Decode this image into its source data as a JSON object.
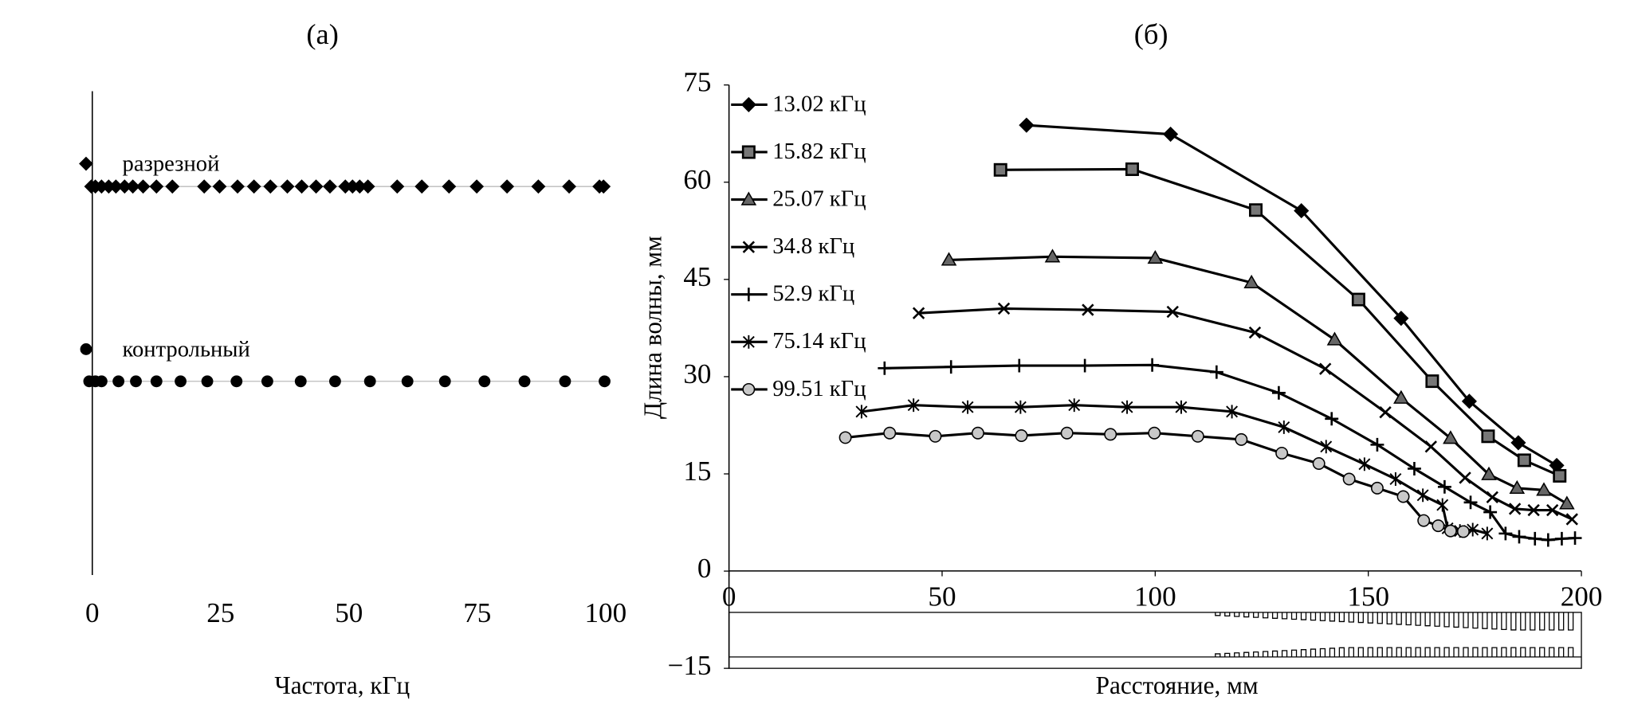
{
  "chart_data": [
    {
      "type": "scatter",
      "title": "(а)",
      "xlabel": "Частота, кГц",
      "xlim": [
        0,
        100
      ],
      "xticks": [
        0,
        25,
        50,
        75,
        100
      ],
      "series": [
        {
          "name": "разрезной",
          "marker": "diamond",
          "color": "#000000",
          "x": [
            -0.2,
            0.6,
            1.8,
            3.2,
            4.6,
            6.3,
            7.9,
            9.9,
            12.5,
            15.6,
            21.8,
            24.8,
            28.3,
            31.5,
            34.7,
            38.0,
            40.8,
            43.6,
            46.3,
            49.3,
            50.7,
            52.1,
            53.7,
            59.4,
            64.2,
            69.5,
            74.9,
            80.8,
            86.9,
            92.9,
            98.8,
            99.6
          ]
        },
        {
          "name": "контрольный",
          "marker": "circle",
          "color": "#000000",
          "x": [
            -0.6,
            0.6,
            1.8,
            5.1,
            8.5,
            12.5,
            17.2,
            22.4,
            28.1,
            34.1,
            40.6,
            47.3,
            54.1,
            61.4,
            68.7,
            76.4,
            84.2,
            92.1,
            99.8
          ]
        }
      ]
    },
    {
      "type": "line",
      "title": "(б)",
      "xlabel": "Расстояние, мм",
      "ylabel": "Длина волны, мм",
      "xlim": [
        0,
        200
      ],
      "xticks": [
        0,
        50,
        100,
        150,
        200
      ],
      "ylim": [
        -15,
        75
      ],
      "yticks": [
        {
          "value": -15,
          "label": "−15"
        },
        0,
        15,
        30,
        45,
        60,
        75
      ],
      "legend": "upper left",
      "series": [
        {
          "name": "13.02 кГц",
          "color": "#000000",
          "marker": "diamond",
          "marker_fill": "#000000",
          "x": [
            69.8,
            103.6,
            134.3,
            157.7,
            173.7,
            185.2,
            194.2
          ],
          "values": [
            68.8,
            67.4,
            55.6,
            39.0,
            26.2,
            19.8,
            16.3
          ]
        },
        {
          "name": "15.82 кГц",
          "color": "#000000",
          "marker": "square",
          "marker_fill": "#777777",
          "x": [
            63.7,
            94.6,
            123.6,
            147.7,
            165.0,
            178.1,
            186.6,
            194.9
          ],
          "values": [
            61.9,
            62.0,
            55.7,
            41.9,
            29.3,
            20.8,
            17.1,
            14.7
          ]
        },
        {
          "name": "25.07 кГц",
          "color": "#000000",
          "marker": "triangle",
          "marker_fill": "#666666",
          "x": [
            51.6,
            75.9,
            100.0,
            122.6,
            142.1,
            157.7,
            169.3,
            178.3,
            184.9,
            191.2,
            196.6
          ],
          "values": [
            48.0,
            48.5,
            48.3,
            44.5,
            35.7,
            26.7,
            20.5,
            14.9,
            12.8,
            12.5,
            10.4
          ]
        },
        {
          "name": "34.8 кГц",
          "color": "#000000",
          "marker": "x",
          "marker_fill": "#000000",
          "x": [
            44.5,
            64.5,
            84.2,
            104.1,
            123.4,
            139.9,
            154.0,
            164.7,
            172.7,
            179.1,
            184.4,
            188.8,
            193.2,
            197.8
          ],
          "values": [
            39.8,
            40.5,
            40.3,
            40.0,
            36.8,
            31.2,
            24.5,
            19.2,
            14.4,
            11.4,
            9.6,
            9.4,
            9.4,
            8.0
          ]
        },
        {
          "name": "52.9 кГц",
          "color": "#000000",
          "marker": "plus",
          "marker_fill": "#000000",
          "x": [
            36.5,
            52.1,
            68.1,
            83.5,
            99.3,
            114.4,
            129.0,
            141.4,
            152.1,
            160.8,
            167.9,
            174.0,
            178.6,
            182.2,
            185.4,
            189.1,
            192.2,
            195.4,
            198.5
          ],
          "values": [
            31.3,
            31.5,
            31.7,
            31.7,
            31.8,
            30.7,
            27.5,
            23.5,
            19.5,
            15.8,
            13.0,
            10.6,
            9.1,
            5.8,
            5.3,
            5.0,
            4.8,
            5.0,
            5.1
          ]
        },
        {
          "name": "75.14 кГц",
          "color": "#000000",
          "marker": "star",
          "marker_fill": "#000000",
          "x": [
            31.1,
            43.3,
            56.0,
            68.4,
            81.0,
            93.4,
            106.1,
            118.0,
            130.2,
            140.1,
            149.1,
            156.4,
            162.8,
            167.4,
            168.6,
            171.5,
            174.5,
            177.9
          ],
          "values": [
            24.6,
            25.6,
            25.3,
            25.3,
            25.6,
            25.3,
            25.3,
            24.6,
            22.2,
            19.2,
            16.5,
            14.2,
            11.7,
            10.2,
            6.6,
            6.2,
            6.4,
            5.8
          ]
        },
        {
          "name": "99.51 кГц",
          "color": "#000000",
          "marker": "circle",
          "marker_fill": "#c8c8c8",
          "x": [
            27.3,
            37.7,
            48.4,
            58.4,
            68.6,
            79.3,
            89.5,
            99.8,
            110.0,
            120.2,
            129.7,
            138.4,
            145.5,
            152.1,
            158.2,
            163.0,
            166.4,
            169.3,
            172.3
          ],
          "values": [
            20.6,
            21.3,
            20.8,
            21.3,
            20.9,
            21.3,
            21.1,
            21.3,
            20.8,
            20.3,
            18.2,
            16.6,
            14.2,
            12.8,
            11.5,
            7.8,
            7.0,
            6.2,
            6.1
          ]
        }
      ]
    }
  ]
}
